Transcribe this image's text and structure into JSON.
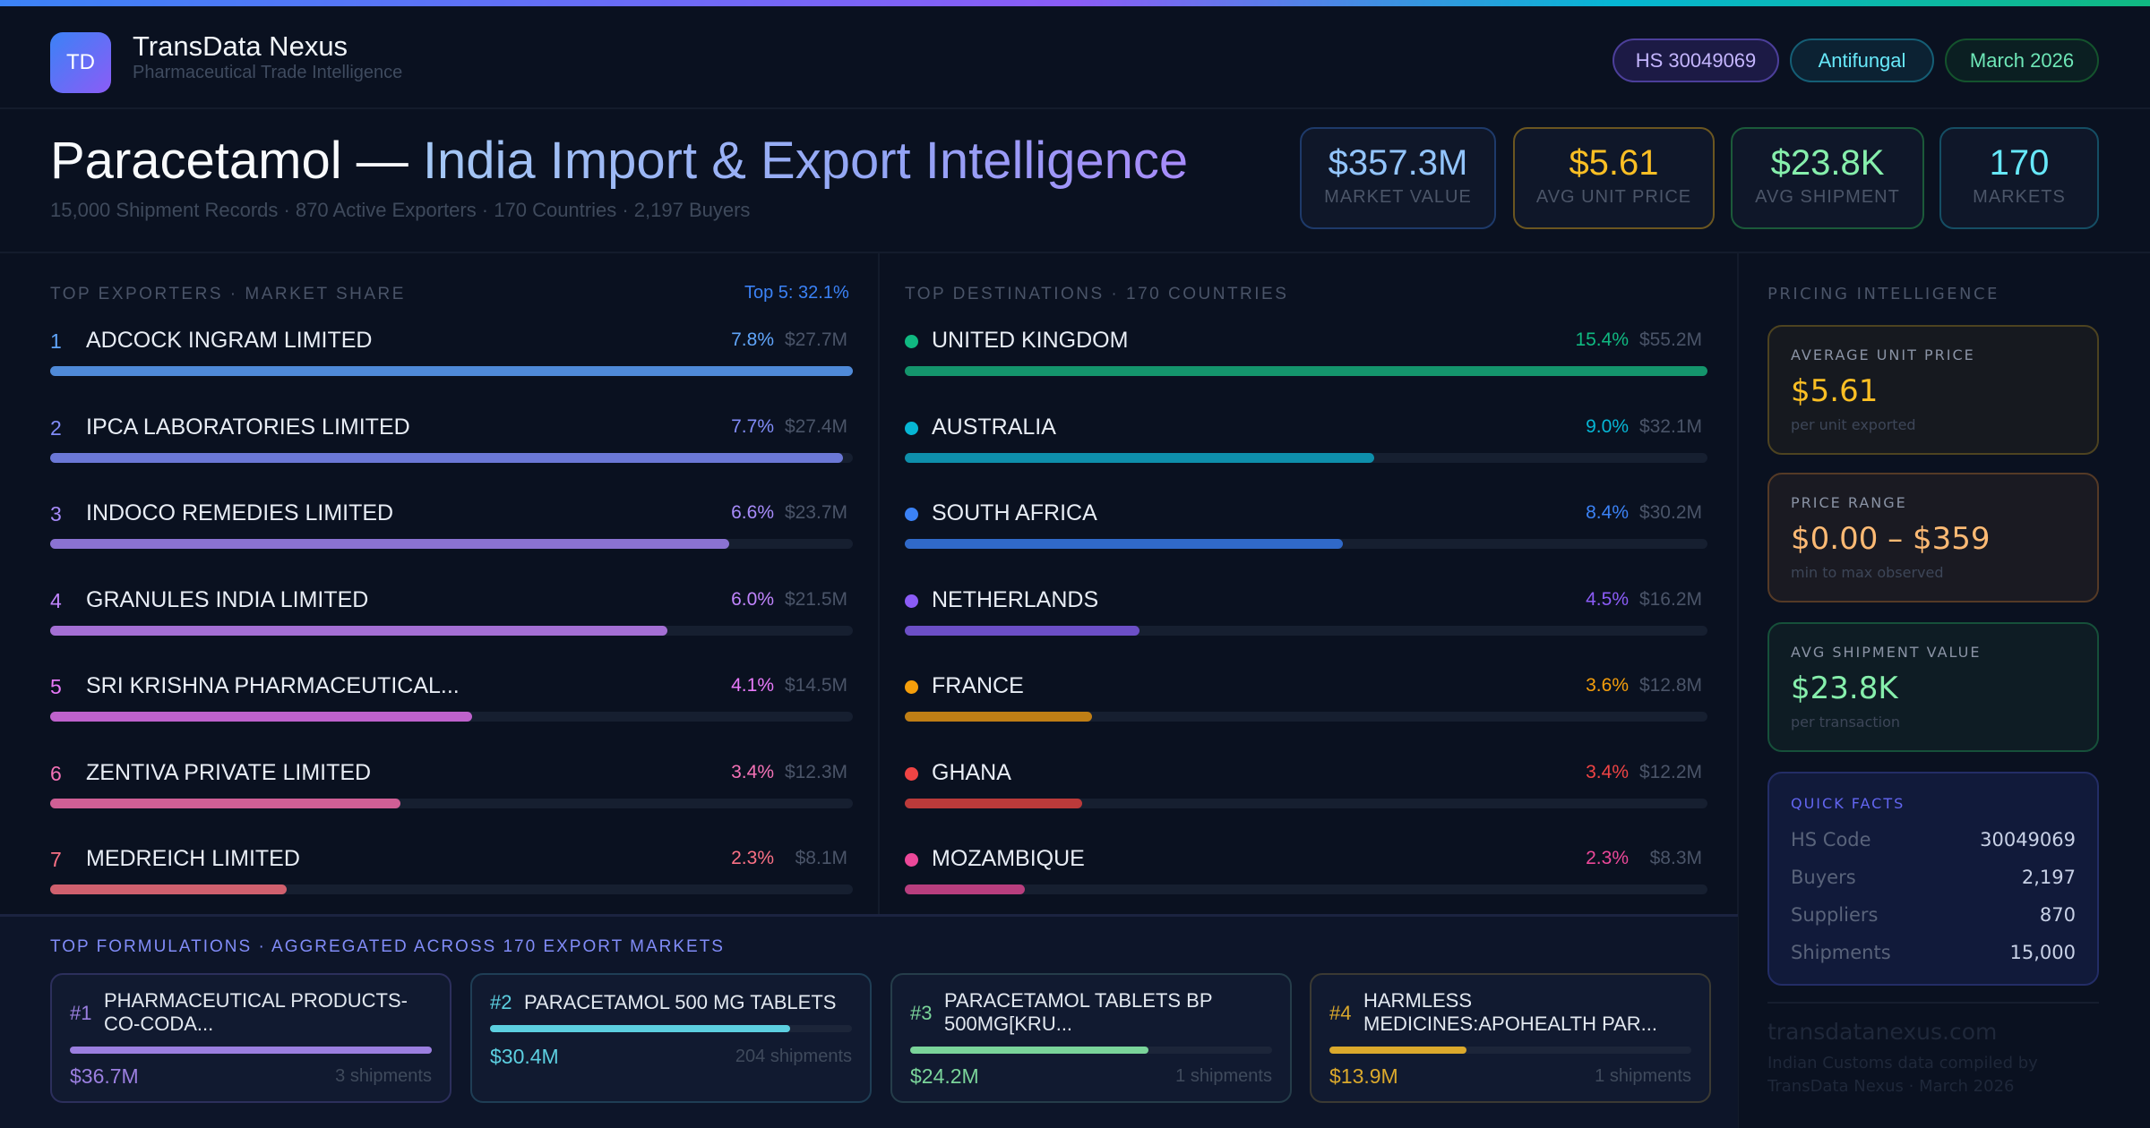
{
  "header": {
    "logo_text": "TD",
    "brand": "TransData Nexus",
    "tagline": "Pharmaceutical Trade Intelligence",
    "pills": [
      {
        "label": "HS 30049069",
        "color": "#c4b5fd",
        "border": "#4c3f9a",
        "bg": "#1c1a45"
      },
      {
        "label": "Antifungal",
        "color": "#67e8f9",
        "border": "#155e75",
        "bg": "#0c2233"
      },
      {
        "label": "March 2026",
        "color": "#6ee7b7",
        "border": "#14532d",
        "bg": "#0b1f22"
      }
    ]
  },
  "hero": {
    "title_product": "Paracetamol —",
    "title_rest": "India Import & Export Intelligence",
    "subtitle": "15,000 Shipment Records · 870 Active Exporters · 170 Countries · 2,197 Buyers"
  },
  "kpis": [
    {
      "value": "$357.3M",
      "label": "MARKET VALUE",
      "color": "#93c5fd",
      "border": "#1e3a6a"
    },
    {
      "value": "$5.61",
      "label": "AVG UNIT PRICE",
      "color": "#fbbf24",
      "border": "#6b5620"
    },
    {
      "value": "$23.8K",
      "label": "AVG SHIPMENT",
      "color": "#86efac",
      "border": "#1b5a3a"
    },
    {
      "value": "170",
      "label": "MARKETS",
      "color": "#67e8f9",
      "border": "#154e64"
    }
  ],
  "exporters": {
    "title": "TOP EXPORTERS · MARKET SHARE",
    "summary": "Top 5: 32.1%",
    "items": [
      {
        "rank": "1",
        "name": "ADCOCK INGRAM LIMITED",
        "pct": "7.8%",
        "share": 7.8,
        "value": "$27.7M",
        "color": "#4f8ad8",
        "text": "#60a5fa"
      },
      {
        "rank": "2",
        "name": "IPCA LABORATORIES LIMITED",
        "pct": "7.7%",
        "share": 7.7,
        "value": "$27.4M",
        "color": "#6b78d6",
        "text": "#818cf8"
      },
      {
        "rank": "3",
        "name": "INDOCO REMEDIES LIMITED",
        "pct": "6.6%",
        "share": 6.6,
        "value": "$23.7M",
        "color": "#8a72d2",
        "text": "#a78bfa"
      },
      {
        "rank": "4",
        "name": "GRANULES INDIA LIMITED",
        "pct": "6.0%",
        "share": 6.0,
        "value": "$21.5M",
        "color": "#a46fd4",
        "text": "#c084fc"
      },
      {
        "rank": "5",
        "name": "SRI KRISHNA PHARMACEUTICAL...",
        "pct": "4.1%",
        "share": 4.1,
        "value": "$14.5M",
        "color": "#be62cc",
        "text": "#e879f9"
      },
      {
        "rank": "6",
        "name": "ZENTIVA PRIVATE LIMITED",
        "pct": "3.4%",
        "share": 3.4,
        "value": "$12.3M",
        "color": "#cf5f95",
        "text": "#f472b6"
      },
      {
        "rank": "7",
        "name": "MEDREICH LIMITED",
        "pct": "2.3%",
        "share": 2.3,
        "value": "$8.1M",
        "color": "#d0606e",
        "text": "#fb7185"
      }
    ]
  },
  "destinations": {
    "title": "TOP DESTINATIONS · 170 COUNTRIES",
    "items": [
      {
        "name": "UNITED KINGDOM",
        "pct": "15.4%",
        "share": 15.4,
        "value": "$55.2M",
        "color": "#14956c",
        "text": "#10b981",
        "dot": "#10b981"
      },
      {
        "name": "AUSTRALIA",
        "pct": "9.0%",
        "share": 9.0,
        "value": "$32.1M",
        "color": "#0e8fab",
        "text": "#06b6d4",
        "dot": "#06b6d4"
      },
      {
        "name": "SOUTH AFRICA",
        "pct": "8.4%",
        "share": 8.4,
        "value": "$30.2M",
        "color": "#3069c8",
        "text": "#3b82f6",
        "dot": "#3b82f6"
      },
      {
        "name": "NETHERLANDS",
        "pct": "4.5%",
        "share": 4.5,
        "value": "$16.2M",
        "color": "#6c4fc6",
        "text": "#8b5cf6",
        "dot": "#8b5cf6"
      },
      {
        "name": "FRANCE",
        "pct": "3.6%",
        "share": 3.6,
        "value": "$12.8M",
        "color": "#bf7e15",
        "text": "#f59e0b",
        "dot": "#f59e0b"
      },
      {
        "name": "GHANA",
        "pct": "3.4%",
        "share": 3.4,
        "value": "$12.2M",
        "color": "#bb3a3a",
        "text": "#ef4444",
        "dot": "#ef4444"
      },
      {
        "name": "MOZAMBIQUE",
        "pct": "2.3%",
        "share": 2.3,
        "value": "$8.3M",
        "color": "#b83e7e",
        "text": "#ec4899",
        "dot": "#ec4899"
      }
    ]
  },
  "formulations": {
    "title": "TOP FORMULATIONS · AGGREGATED ACROSS 170 EXPORT MARKETS",
    "items": [
      {
        "rank": "#1",
        "name": "PHARMACEUTICAL PRODUCTS- CO-CODA...",
        "value": "$36.7M",
        "amount": 36.7,
        "shipments": "3 shipments",
        "color": "#9b7fe0",
        "border": "#2c2f5c",
        "two_line": true
      },
      {
        "rank": "#2",
        "name": "PARACETAMOL 500 MG TABLETS",
        "value": "$30.4M",
        "amount": 30.4,
        "shipments": "204 shipments",
        "color": "#5ccfe0",
        "border": "#1f3e55",
        "two_line": false
      },
      {
        "rank": "#3",
        "name": "PARACETAMOL TABLETS BP 500MG[KRU...",
        "value": "$24.2M",
        "amount": 24.2,
        "shipments": "1 shipments",
        "color": "#7ad49a",
        "border": "#253d4a",
        "two_line": true
      },
      {
        "rank": "#4",
        "name": "HARMLESS MEDICINES:APOHEALTH PAR...",
        "value": "$13.9M",
        "amount": 13.9,
        "shipments": "1 shipments",
        "color": "#dba92c",
        "border": "#3b3a33",
        "two_line": true
      }
    ]
  },
  "pricing": {
    "title": "PRICING INTELLIGENCE",
    "cards": [
      {
        "label": "AVERAGE UNIT PRICE",
        "value": "$5.61",
        "sub": "per unit exported",
        "color": "#fbbf24",
        "border": "#4d4320",
        "bg": "#16191f"
      },
      {
        "label": "PRICE RANGE",
        "value": "$0.00 – $359",
        "sub": "min to max observed",
        "color": "#fdba74",
        "border": "#553a26",
        "bg": "#1a1a22"
      },
      {
        "label": "AVG SHIPMENT VALUE",
        "value": "$23.8K",
        "sub": "per transaction",
        "color": "#86efac",
        "border": "#16503a",
        "bg": "#0e1c24"
      }
    ],
    "quick_facts": {
      "title": "QUICK FACTS",
      "rows": [
        {
          "k": "HS Code",
          "v": "30049069"
        },
        {
          "k": "Buyers",
          "v": "2,197"
        },
        {
          "k": "Suppliers",
          "v": "870"
        },
        {
          "k": "Shipments",
          "v": "15,000"
        }
      ]
    },
    "footer_url": "transdatanexus.com",
    "footer_note_1": "Indian Customs data compiled by",
    "footer_note_2": "TransData Nexus · March 2026"
  }
}
